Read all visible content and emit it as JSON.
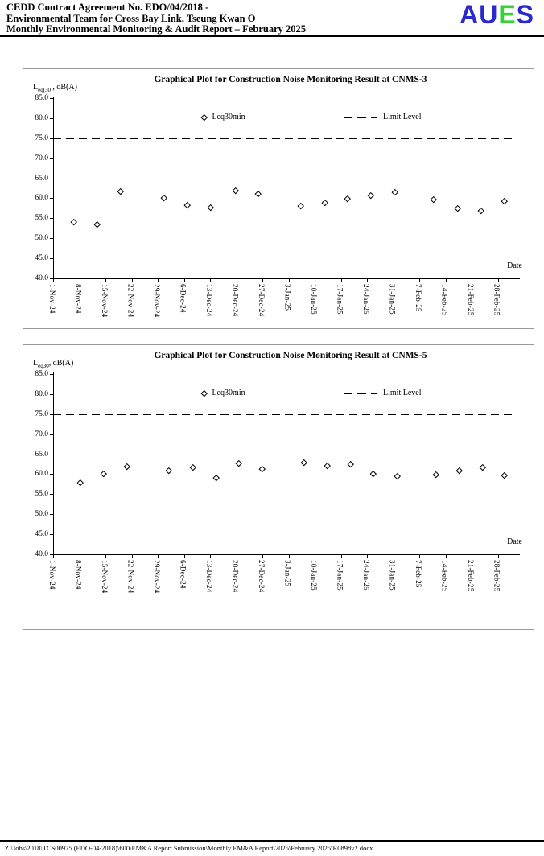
{
  "header": {
    "line1": "CEDD Contract Agreement No. EDO/04/2018 -",
    "line2": "Environmental Team for Cross Bay Link, Tseung Kwan O",
    "line3": "Monthly Environmental Monitoring & Audit Report – February 2025",
    "logo": {
      "letters": [
        {
          "char": "A",
          "color": "#2a2ac8"
        },
        {
          "char": "U",
          "color": "#2a2ac8"
        },
        {
          "char": "E",
          "color": "#35d435"
        },
        {
          "char": "S",
          "color": "#2a2ac8"
        }
      ]
    }
  },
  "footer": {
    "path": "Z:\\Jobs\\2018\\TCS00975 (EDO-04-2018)\\600\\EM&A Report Submission\\Monthly EM&A Report\\2025\\February 2025\\R0898v2.docx"
  },
  "chart_data": [
    {
      "type": "scatter",
      "title": "Graphical Plot for Construction Noise Monitoring Result at CNMS-3",
      "ylabel_main": "L",
      "ylabel_sub": "eq(30)",
      "ylabel_rest": ", dB(A)",
      "xlabel": "Date",
      "ylim": [
        40.0,
        85.0
      ],
      "ytick_labels": [
        "85.0",
        "80.0",
        "75.0",
        "70.0",
        "65.0",
        "60.0",
        "55.0",
        "50.0",
        "45.0",
        "40.0"
      ],
      "categories": [
        "1-Nov-24",
        "8-Nov-24",
        "15-Nov-24",
        "22-Nov-24",
        "29-Nov-24",
        "6-Dec-24",
        "13-Dec-24",
        "20-Dec-24",
        "27-Dec-24",
        "3-Jan-25",
        "10-Jan-25",
        "17-Jan-25",
        "24-Jan-25",
        "31-Jan-25",
        "7-Feb-25",
        "14-Feb-25",
        "21-Feb-25",
        "28-Feb-25"
      ],
      "legend": [
        {
          "label": "Leq30min",
          "marker": "open-diamond"
        },
        {
          "label": "Limit Level",
          "marker": "dashed-line"
        }
      ],
      "limit_level": 75.0,
      "grid": false,
      "series": [
        {
          "name": "Leq30min",
          "points": [
            {
              "x_frac": 0.047,
              "value": 54.0
            },
            {
              "x_frac": 0.099,
              "value": 53.5
            },
            {
              "x_frac": 0.152,
              "value": 61.7
            },
            {
              "x_frac": 0.25,
              "value": 60.0
            },
            {
              "x_frac": 0.302,
              "value": 58.3
            },
            {
              "x_frac": 0.355,
              "value": 57.7
            },
            {
              "x_frac": 0.41,
              "value": 61.8
            },
            {
              "x_frac": 0.461,
              "value": 61.0
            },
            {
              "x_frac": 0.557,
              "value": 58.0
            },
            {
              "x_frac": 0.611,
              "value": 58.9
            },
            {
              "x_frac": 0.663,
              "value": 59.9
            },
            {
              "x_frac": 0.715,
              "value": 60.6
            },
            {
              "x_frac": 0.769,
              "value": 61.4
            },
            {
              "x_frac": 0.857,
              "value": 59.6
            },
            {
              "x_frac": 0.91,
              "value": 57.5
            },
            {
              "x_frac": 0.963,
              "value": 56.9
            },
            {
              "x_frac": 1.015,
              "value": 59.2
            }
          ]
        }
      ]
    },
    {
      "type": "scatter",
      "title": "Graphical Plot for Construction Noise Monitoring Result at CNMS-5",
      "ylabel_main": "L",
      "ylabel_sub": "eq30",
      "ylabel_rest": ", dB(A)",
      "xlabel": "Date",
      "ylim": [
        40.0,
        85.0
      ],
      "ytick_labels": [
        "85.0",
        "80.0",
        "75.0",
        "70.0",
        "65.0",
        "60.0",
        "55.0",
        "50.0",
        "45.0",
        "40.0"
      ],
      "categories": [
        "1-Nov-24",
        "8-Nov-24",
        "15-Nov-24",
        "22-Nov-24",
        "29-Nov-24",
        "6-Dec-24",
        "13-Dec-24",
        "20-Dec-24",
        "27-Dec-24",
        "3-Jan-25",
        "10-Jan-25",
        "17-Jan-25",
        "24-Jan-25",
        "31-Jan-25",
        "7-Feb-25",
        "14-Feb-25",
        "21-Feb-25",
        "28-Feb-25"
      ],
      "legend": [
        {
          "label": "Leq30min",
          "marker": "open-diamond"
        },
        {
          "label": "Limit Level",
          "marker": "dashed-line"
        }
      ],
      "limit_level": 75.0,
      "grid": false,
      "series": [
        {
          "name": "Leq30min",
          "points": [
            {
              "x_frac": 0.062,
              "value": 57.9
            },
            {
              "x_frac": 0.114,
              "value": 60.0
            },
            {
              "x_frac": 0.166,
              "value": 61.8
            },
            {
              "x_frac": 0.261,
              "value": 60.8
            },
            {
              "x_frac": 0.315,
              "value": 61.6
            },
            {
              "x_frac": 0.367,
              "value": 59.0
            },
            {
              "x_frac": 0.419,
              "value": 62.8
            },
            {
              "x_frac": 0.47,
              "value": 61.3
            },
            {
              "x_frac": 0.565,
              "value": 62.9
            },
            {
              "x_frac": 0.617,
              "value": 62.0
            },
            {
              "x_frac": 0.67,
              "value": 62.4
            },
            {
              "x_frac": 0.721,
              "value": 60.1
            },
            {
              "x_frac": 0.774,
              "value": 59.5
            },
            {
              "x_frac": 0.862,
              "value": 59.8
            },
            {
              "x_frac": 0.914,
              "value": 60.9
            },
            {
              "x_frac": 0.967,
              "value": 61.7
            },
            {
              "x_frac": 1.016,
              "value": 59.6
            }
          ]
        }
      ]
    }
  ]
}
